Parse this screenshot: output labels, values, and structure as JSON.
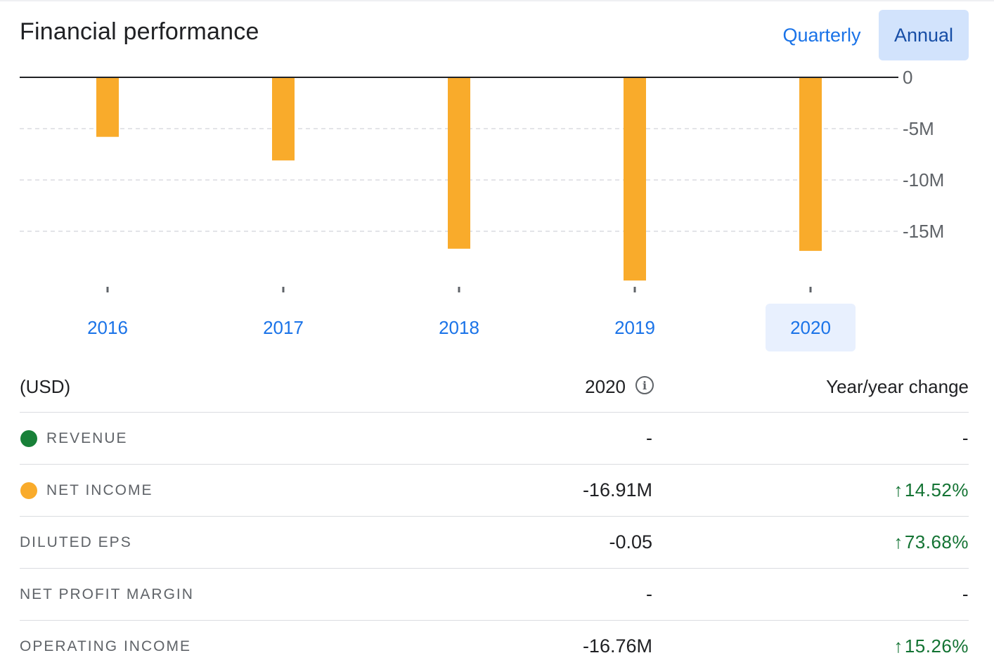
{
  "header": {
    "title": "Financial performance",
    "quarterly_label": "Quarterly",
    "annual_label": "Annual"
  },
  "chart_data": {
    "type": "bar",
    "categories": [
      "2016",
      "2017",
      "2018",
      "2019",
      "2020"
    ],
    "series": [
      {
        "name": "NET INCOME",
        "values": [
          -5.8,
          -8.1,
          -16.7,
          -19.8,
          -16.91
        ],
        "color": "#f9ab2b"
      }
    ],
    "ylim": [
      -20.5,
      0
    ],
    "yticks": [
      0,
      -5,
      -10,
      -15
    ],
    "ytick_labels": [
      "0",
      "-5M",
      "-10M",
      "-15M"
    ],
    "grid": true,
    "selected_category": "2020"
  },
  "table": {
    "header": {
      "label": "(USD)",
      "period": "2020",
      "change": "Year/year change"
    },
    "rows": [
      {
        "label": "REVENUE",
        "value": "-",
        "change": "-",
        "dot_color": "#188038"
      },
      {
        "label": "NET INCOME",
        "value": "-16.91M",
        "change": "14.52%",
        "arrow": "↑",
        "dot_color": "#f9ab2b"
      },
      {
        "label": "DILUTED EPS",
        "value": "-0.05",
        "change": "73.68%",
        "arrow": "↑"
      },
      {
        "label": "NET PROFIT MARGIN",
        "value": "-",
        "change": "-"
      },
      {
        "label": "OPERATING INCOME",
        "value": "-16.76M",
        "change": "15.26%",
        "arrow": "↑"
      }
    ]
  },
  "icons": {
    "info": "info-icon",
    "up": "arrow-up-icon"
  }
}
